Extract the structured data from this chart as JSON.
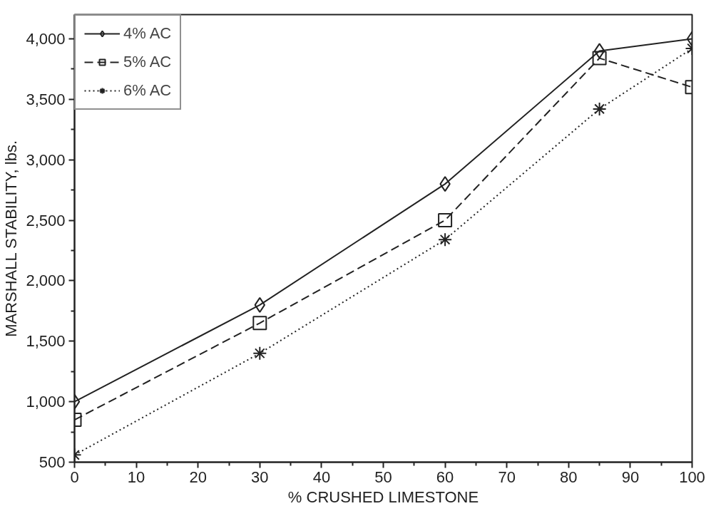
{
  "chart_data": {
    "type": "line",
    "xlabel": "% CRUSHED LIMESTONE",
    "ylabel": "MARSHALL STABILITY, lbs.",
    "x": [
      0,
      30,
      60,
      85,
      100
    ],
    "series": [
      {
        "name": "4% AC",
        "color": "#222222",
        "marker": "diamond",
        "line_style": "solid",
        "values": [
          1000,
          1800,
          2800,
          3900,
          4000
        ]
      },
      {
        "name": "5% AC",
        "color": "#222222",
        "marker": "square",
        "line_style": "dashed",
        "values": [
          850,
          1650,
          2500,
          3840,
          3600
        ]
      },
      {
        "name": "6% AC",
        "color": "#222222",
        "marker": "cross",
        "line_style": "dotted",
        "values": [
          560,
          1400,
          2340,
          3420,
          3920
        ]
      }
    ],
    "xlim": [
      0,
      100
    ],
    "xticks": [
      0,
      10,
      20,
      30,
      40,
      50,
      60,
      70,
      80,
      90,
      100
    ],
    "ylim": [
      500,
      4200
    ],
    "yticks": [
      500,
      {
        "value": 1000,
        "label": "1,000"
      },
      {
        "value": 1500,
        "label": "1,500"
      },
      {
        "value": 2000,
        "label": "2,000"
      },
      {
        "value": 2500,
        "label": "2,500"
      },
      {
        "value": 3000,
        "label": "3,000"
      },
      {
        "value": 3500,
        "label": "3,500"
      },
      {
        "value": 4000,
        "label": "4,000"
      }
    ],
    "grid": false,
    "legend": "top left"
  }
}
